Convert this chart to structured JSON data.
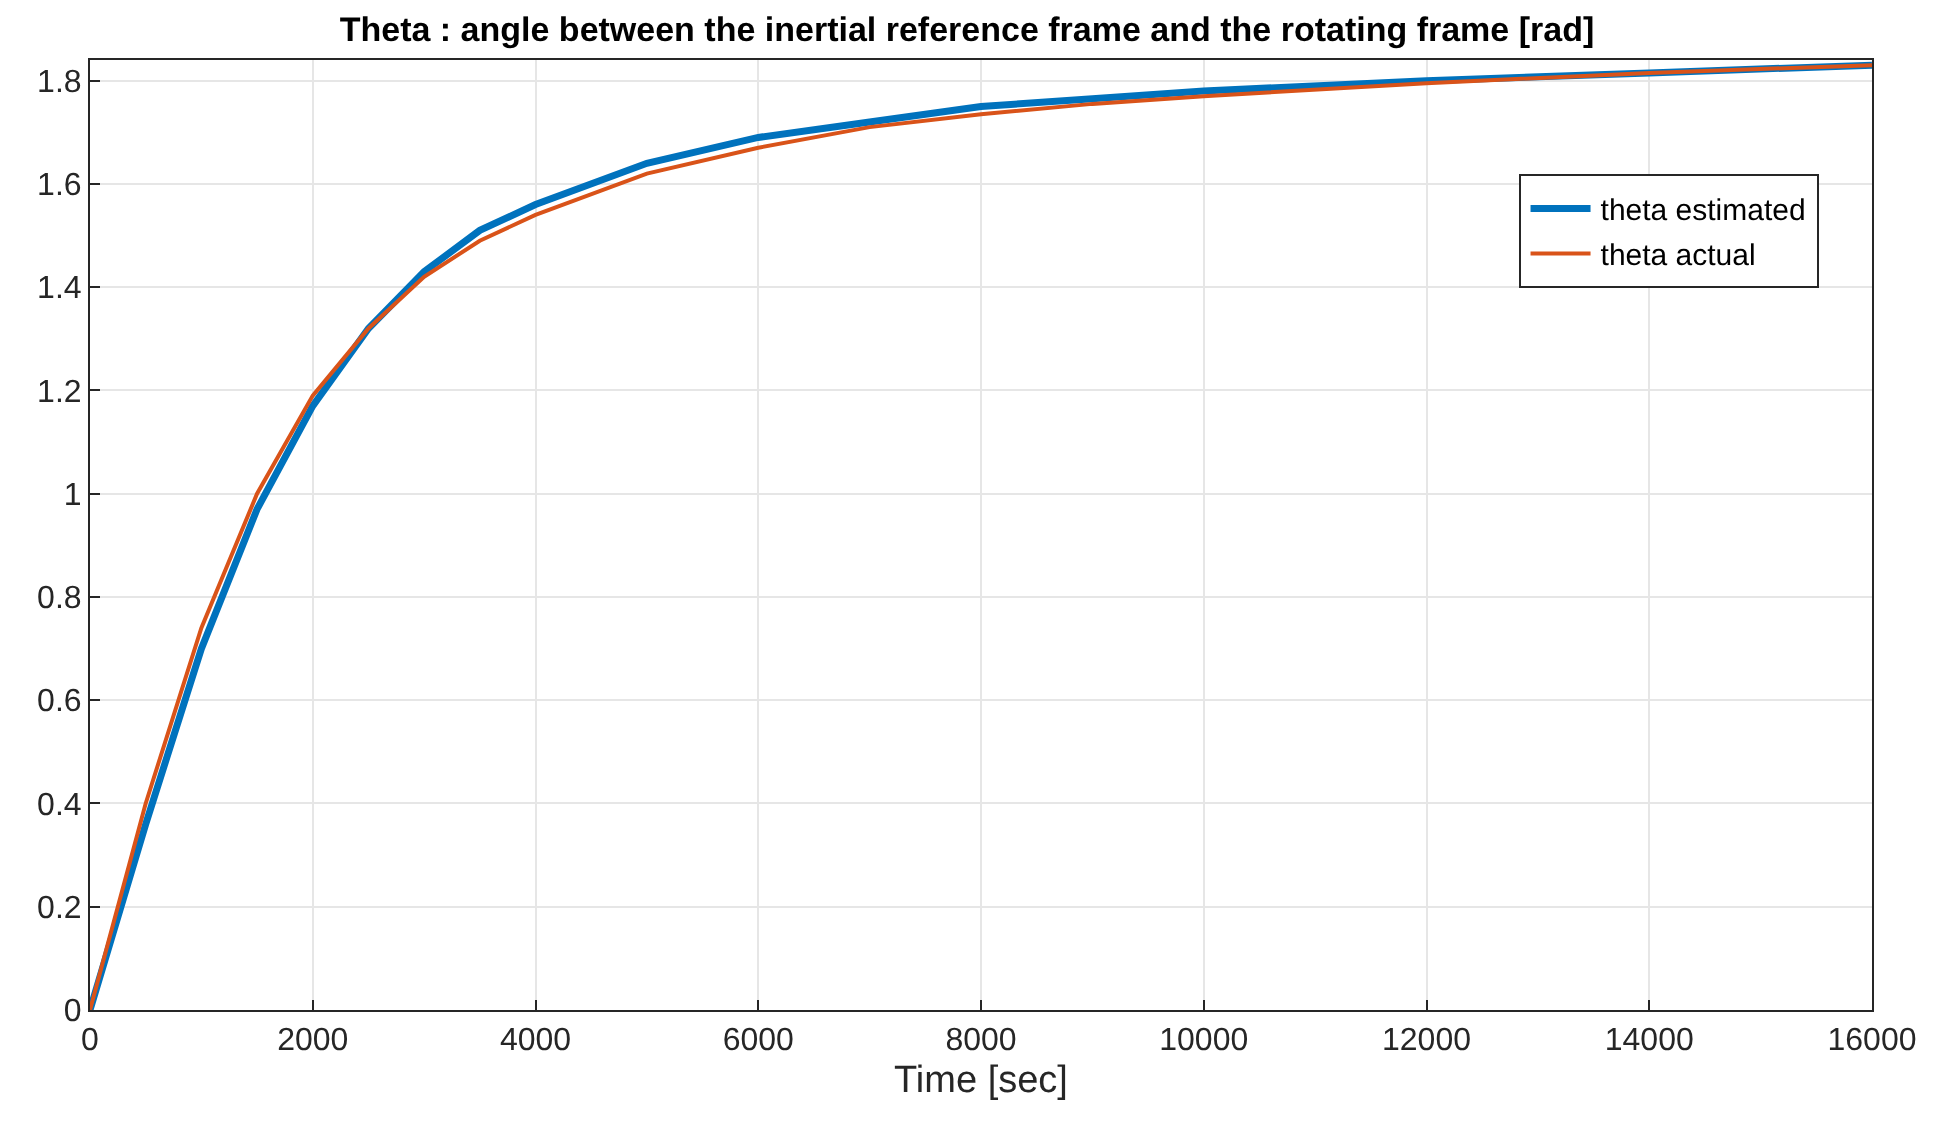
{
  "chart_data": {
    "type": "line",
    "title": "Theta : angle between the inertial reference frame and the rotating frame [rad]",
    "xlabel": "Time [sec]",
    "series": [
      {
        "name": "theta estimated",
        "color": "#0072bd",
        "x": [
          0,
          500,
          1000,
          1500,
          2000,
          2500,
          3000,
          3500,
          4000,
          5000,
          6000,
          7000,
          8000,
          9000,
          10000,
          12000,
          14000,
          16000
        ],
        "values": [
          0,
          0.36,
          0.7,
          0.97,
          1.17,
          1.32,
          1.43,
          1.51,
          1.56,
          1.64,
          1.69,
          1.72,
          1.75,
          1.765,
          1.78,
          1.8,
          1.815,
          1.83
        ]
      },
      {
        "name": "theta actual",
        "color": "#d95319",
        "x": [
          0,
          500,
          1000,
          1500,
          2000,
          2500,
          3000,
          3500,
          4000,
          5000,
          6000,
          7000,
          8000,
          9000,
          10000,
          12000,
          14000,
          16000
        ],
        "values": [
          0,
          0.4,
          0.74,
          1.0,
          1.19,
          1.32,
          1.42,
          1.49,
          1.54,
          1.62,
          1.67,
          1.71,
          1.735,
          1.755,
          1.77,
          1.795,
          1.815,
          1.83
        ]
      }
    ],
    "xlim": [
      0,
      16000
    ],
    "xticks": [
      0,
      2000,
      4000,
      6000,
      8000,
      10000,
      12000,
      14000,
      16000
    ],
    "ylim": [
      0,
      1.84
    ],
    "yticks": [
      0,
      0.2,
      0.4,
      0.6,
      0.8,
      1,
      1.2,
      1.4,
      1.6,
      1.8
    ],
    "grid": true,
    "legend": "top right",
    "marker": "none",
    "line_style": "solid"
  }
}
